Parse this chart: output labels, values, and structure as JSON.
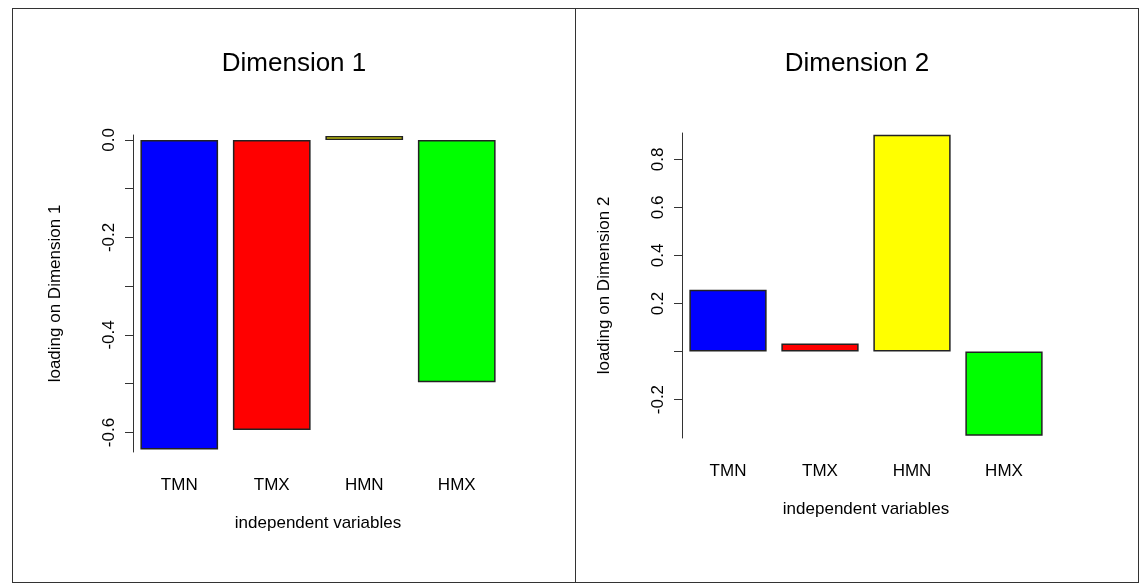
{
  "chart_data": [
    {
      "type": "bar",
      "title": "Dimension 1",
      "xlabel": "independent variables",
      "ylabel": "loading on Dimension 1",
      "categories": [
        "TMN",
        "TMX",
        "HMN",
        "HMX"
      ],
      "values": [
        -0.635,
        -0.595,
        0.008,
        -0.497
      ],
      "colors": [
        "#0000ff",
        "#ff0000",
        "#ffff00",
        "#00ff00"
      ],
      "ylim": [
        -0.64,
        0.01
      ],
      "yticks": [
        {
          "value": 0,
          "label": "0.0"
        },
        {
          "value": -0.1,
          "label": null
        },
        {
          "value": -0.2,
          "label": "-0.2"
        },
        {
          "value": -0.3,
          "label": null
        },
        {
          "value": -0.4,
          "label": "-0.4"
        },
        {
          "value": -0.5,
          "label": null
        },
        {
          "value": -0.6,
          "label": "-0.6"
        }
      ],
      "grid": false
    },
    {
      "type": "bar",
      "title": "Dimension 2",
      "xlabel": "independent variables",
      "ylabel": "loading on Dimension 2",
      "categories": [
        "TMN",
        "TMX",
        "HMN",
        "HMX"
      ],
      "values": [
        0.257,
        0.034,
        0.903,
        -0.351
      ],
      "colors": [
        "#0000ff",
        "#ff0000",
        "#ffff00",
        "#00ff00"
      ],
      "ylim": [
        -0.36,
        0.91
      ],
      "yticks": [
        -0.2,
        {
          "value": 0,
          "label": null
        },
        0.2,
        0.4,
        0.6,
        0.8
      ],
      "grid": false
    }
  ]
}
